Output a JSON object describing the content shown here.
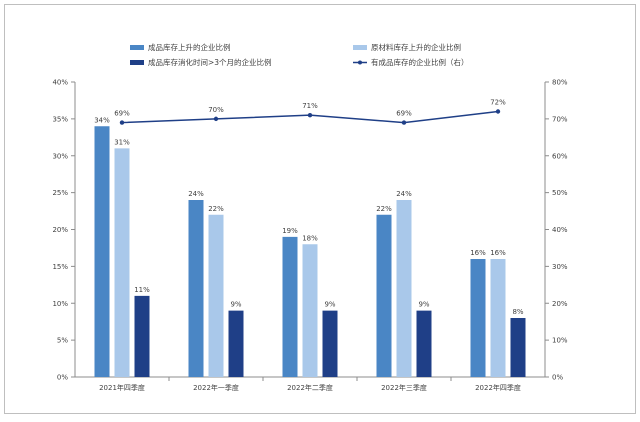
{
  "chart_data": {
    "type": "bar",
    "categories": [
      "2021年四季度",
      "2022年一季度",
      "2022年二季度",
      "2022年三季度",
      "2022年四季度"
    ],
    "series": [
      {
        "name": "成品库存上升的企业比例",
        "values": [
          34,
          24,
          19,
          22,
          16
        ],
        "labels": [
          "34%",
          "24%",
          "19%",
          "22%",
          "16%"
        ],
        "color": "#4a86c5",
        "axis": "left",
        "type": "bar"
      },
      {
        "name": "原材料库存上升的企业比例",
        "values": [
          31,
          22,
          18,
          24,
          16
        ],
        "labels": [
          "31%",
          "22%",
          "18%",
          "24%",
          "16%"
        ],
        "color": "#a9c8ea",
        "axis": "left",
        "type": "bar"
      },
      {
        "name": "成品库存消化时间>3个月的企业比例",
        "values": [
          11,
          9,
          9,
          9,
          8
        ],
        "labels": [
          "11%",
          "9%",
          "9%",
          "9%",
          "8%"
        ],
        "color": "#1f3f87",
        "axis": "left",
        "type": "bar"
      },
      {
        "name": "有成品库存的企业比例（右）",
        "values": [
          69,
          70,
          71,
          69,
          72
        ],
        "labels": [
          "69%",
          "70%",
          "71%",
          "69%",
          "72%"
        ],
        "color": "#1f3f87",
        "axis": "right",
        "type": "line"
      }
    ],
    "left_axis": {
      "ylim": [
        0,
        40
      ],
      "ticks": [
        "0%",
        "5%",
        "10%",
        "15%",
        "20%",
        "25%",
        "30%",
        "35%",
        "40%"
      ]
    },
    "right_axis": {
      "ylim": [
        0,
        80
      ],
      "ticks": [
        "0%",
        "10%",
        "20%",
        "30%",
        "40%",
        "50%",
        "60%",
        "70%",
        "80%"
      ]
    },
    "title": "",
    "xlabel": "",
    "ylabel": "",
    "grid": false,
    "legend_position": "top"
  }
}
